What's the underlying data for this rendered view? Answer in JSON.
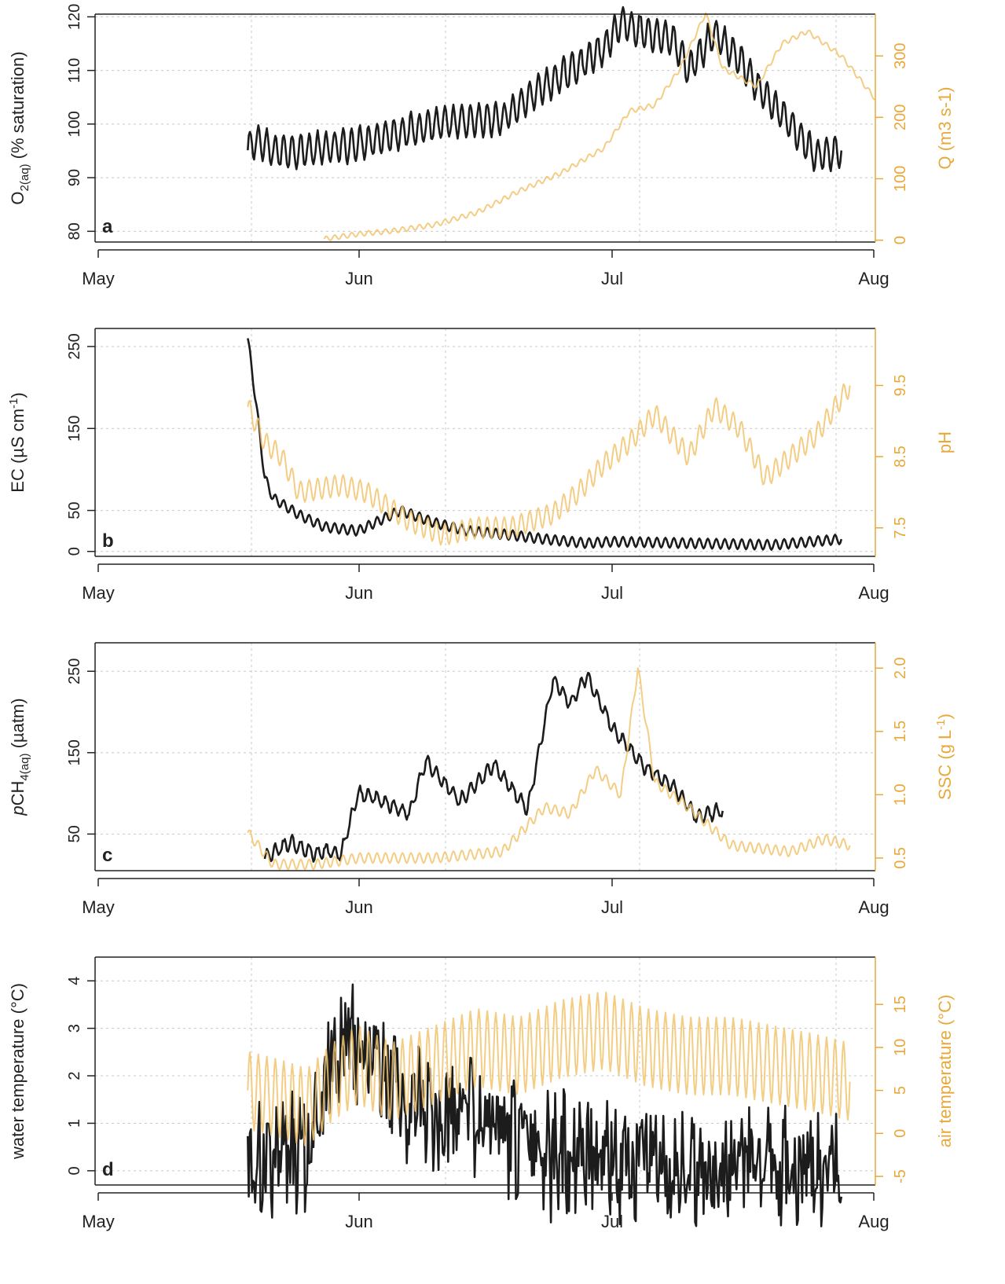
{
  "colors": {
    "primary": "#1c1c1c",
    "secondary": "#f2c46e",
    "secondary_axis": "#e8a93a",
    "grid": "#c8c8c8",
    "axis": "#222222"
  },
  "chart_data": [
    {
      "type": "line",
      "panel_label": "a",
      "x_ticks": [
        "May",
        "Jun",
        "Jul",
        "Aug"
      ],
      "xlim": [
        "2000-05-01",
        "2000-08-01"
      ],
      "ylabel_left_main": "O",
      "ylabel_left_sub": "2(aq)",
      "ylabel_left_rest": " (% saturation)",
      "ylabel_right": "Q (m3 s-1)",
      "ylim_left": [
        78,
        120.5
      ],
      "ylim_right": [
        -3,
        368
      ],
      "left_ticks": [
        "80",
        "90",
        "100",
        "110",
        "120"
      ],
      "right_ticks": [
        "0",
        "100",
        "200",
        "300"
      ],
      "series": [
        {
          "axis": "left",
          "color": "primary",
          "x": [
            "2000-05-19",
            "2000-05-20",
            "2000-05-21",
            "2000-05-22",
            "2000-05-25",
            "2000-05-31",
            "2000-06-05",
            "2000-06-10",
            "2000-06-18",
            "2000-06-22",
            "2000-06-26",
            "2000-06-30",
            "2000-07-02",
            "2000-07-05",
            "2000-07-08",
            "2000-07-10",
            "2000-07-13",
            "2000-07-16",
            "2000-07-18",
            "2000-07-22",
            "2000-07-25",
            "2000-07-28"
          ],
          "y": [
            95,
            97,
            96,
            95,
            95,
            96,
            98,
            100,
            101,
            106,
            110,
            114,
            119,
            117,
            116,
            110,
            117,
            112,
            107,
            100,
            94,
            95
          ]
        },
        {
          "axis": "right",
          "color": "secondary",
          "x": [
            "2000-05-28",
            "2000-06-01",
            "2000-06-05",
            "2000-06-10",
            "2000-06-15",
            "2000-06-20",
            "2000-06-25",
            "2000-06-30",
            "2000-07-03",
            "2000-07-06",
            "2000-07-09",
            "2000-07-12",
            "2000-07-14",
            "2000-07-18",
            "2000-07-21",
            "2000-07-24",
            "2000-07-28",
            "2000-08-01"
          ],
          "y": [
            2,
            10,
            15,
            25,
            45,
            80,
            110,
            150,
            210,
            220,
            280,
            370,
            280,
            250,
            320,
            340,
            300,
            230
          ]
        }
      ]
    },
    {
      "type": "line",
      "panel_label": "b",
      "x_ticks": [
        "May",
        "Jun",
        "Jul",
        "Aug"
      ],
      "xlim": [
        "2000-05-01",
        "2000-08-01"
      ],
      "ylabel_left_main": "EC  (µS cm",
      "ylabel_left_sup": "-1",
      "ylabel_left_rest": ")",
      "ylabel_right": "pH",
      "ylim_left": [
        -6,
        272
      ],
      "ylim_right": [
        7.1,
        10.3
      ],
      "left_ticks": [
        "0",
        "50",
        "150",
        "250"
      ],
      "right_ticks": [
        "7.5",
        "8.5",
        "9.5"
      ],
      "right_tick_values": [
        7.5,
        8.5,
        9.5
      ],
      "series": [
        {
          "axis": "left",
          "color": "primary",
          "x": [
            "2000-05-19",
            "2000-05-20",
            "2000-05-21",
            "2000-05-22",
            "2000-05-25",
            "2000-05-28",
            "2000-06-01",
            "2000-06-06",
            "2000-06-10",
            "2000-06-14",
            "2000-06-19",
            "2000-06-23",
            "2000-06-28",
            "2000-07-01",
            "2000-07-10",
            "2000-07-20",
            "2000-07-28"
          ],
          "y": [
            260,
            180,
            90,
            65,
            45,
            30,
            25,
            50,
            35,
            25,
            20,
            15,
            10,
            12,
            10,
            8,
            15
          ]
        },
        {
          "axis": "right",
          "color": "secondary",
          "x": [
            "2000-05-19",
            "2000-05-21",
            "2000-05-23",
            "2000-05-25",
            "2000-05-30",
            "2000-06-02",
            "2000-06-07",
            "2000-06-11",
            "2000-06-15",
            "2000-06-19",
            "2000-06-24",
            "2000-06-27",
            "2000-06-30",
            "2000-07-03",
            "2000-07-06",
            "2000-07-10",
            "2000-07-13",
            "2000-07-16",
            "2000-07-19",
            "2000-07-25",
            "2000-07-29"
          ],
          "y": [
            9.2,
            8.7,
            8.5,
            8.0,
            8.1,
            8.0,
            7.6,
            7.4,
            7.5,
            7.5,
            7.7,
            8.0,
            8.4,
            8.7,
            9.1,
            8.5,
            9.2,
            8.9,
            8.2,
            8.8,
            9.5
          ]
        }
      ]
    },
    {
      "type": "line",
      "panel_label": "c",
      "x_ticks": [
        "May",
        "Jun",
        "Jul",
        "Aug"
      ],
      "xlim": [
        "2000-05-01",
        "2000-08-01"
      ],
      "ylabel_left_prefix": "p",
      "ylabel_left_main": "CH",
      "ylabel_left_sub": "4(aq)",
      "ylabel_left_rest": "  (µatm)",
      "ylabel_right_main": "SSC (g L",
      "ylabel_right_sup": "-1",
      "ylabel_right_rest": ")",
      "ylim_left": [
        5,
        285
      ],
      "ylim_right": [
        0.4,
        2.2
      ],
      "left_ticks": [
        "50",
        "150",
        "250"
      ],
      "right_ticks": [
        "0.5",
        "1.0",
        "1.5",
        "2.0"
      ],
      "right_tick_values": [
        0.5,
        1.0,
        1.5,
        2.0
      ],
      "series": [
        {
          "axis": "left",
          "color": "primary",
          "x": [
            "2000-05-21",
            "2000-05-24",
            "2000-05-27",
            "2000-05-28",
            "2000-05-30",
            "2000-06-01",
            "2000-06-03",
            "2000-06-07",
            "2000-06-09",
            "2000-06-13",
            "2000-06-17",
            "2000-06-21",
            "2000-06-24",
            "2000-06-26",
            "2000-06-28",
            "2000-07-01",
            "2000-07-05",
            "2000-07-08",
            "2000-07-11",
            "2000-07-14"
          ],
          "y": [
            20,
            40,
            25,
            30,
            25,
            100,
            95,
            75,
            140,
            90,
            135,
            80,
            240,
            210,
            245,
            180,
            130,
            110,
            70,
            80
          ]
        },
        {
          "axis": "right",
          "color": "secondary",
          "x": [
            "2000-05-19",
            "2000-05-22",
            "2000-05-27",
            "2000-06-01",
            "2000-06-10",
            "2000-06-18",
            "2000-06-23",
            "2000-06-26",
            "2000-06-29",
            "2000-07-02",
            "2000-07-04",
            "2000-07-06",
            "2000-07-10",
            "2000-07-15",
            "2000-07-22",
            "2000-07-26",
            "2000-07-29"
          ],
          "y": [
            0.7,
            0.45,
            0.45,
            0.5,
            0.5,
            0.55,
            0.9,
            0.85,
            1.2,
            1.0,
            2.0,
            1.1,
            0.9,
            0.6,
            0.55,
            0.65,
            0.6
          ]
        }
      ]
    },
    {
      "type": "line",
      "panel_label": "d",
      "x_ticks": [
        "May",
        "Jun",
        "Jul",
        "Aug"
      ],
      "xlim": [
        "2000-05-01",
        "2000-08-01"
      ],
      "ylabel_left": "water temperature (°C)",
      "ylabel_right": "air temperature (°C)",
      "ylim_left": [
        -0.3,
        4.5
      ],
      "ylim_right": [
        -6,
        20.5
      ],
      "left_ticks": [
        "0",
        "1",
        "2",
        "3",
        "4"
      ],
      "right_ticks": [
        "-5",
        "0",
        "5",
        "10",
        "15"
      ],
      "series": [
        {
          "axis": "left",
          "color": "primary",
          "x": [
            "2000-05-19",
            "2000-05-23",
            "2000-05-26",
            "2000-05-29",
            "2000-05-31",
            "2000-06-03",
            "2000-06-07",
            "2000-06-10",
            "2000-06-14",
            "2000-06-18",
            "2000-06-21",
            "2000-06-24",
            "2000-07-01",
            "2000-07-10",
            "2000-07-20",
            "2000-07-28"
          ],
          "y": [
            0.1,
            0.2,
            0.6,
            2.5,
            2.8,
            2.2,
            1.5,
            1.0,
            1.2,
            0.8,
            0.5,
            0.3,
            0.2,
            0.15,
            0.2,
            0.15
          ]
        },
        {
          "axis": "right",
          "color": "secondary",
          "x": [
            "2000-05-19",
            "2000-05-23",
            "2000-05-26",
            "2000-05-29",
            "2000-06-01",
            "2000-06-05",
            "2000-06-10",
            "2000-06-15",
            "2000-06-20",
            "2000-06-25",
            "2000-06-30",
            "2000-07-05",
            "2000-07-10",
            "2000-07-15",
            "2000-07-20",
            "2000-07-25",
            "2000-07-29"
          ],
          "y": [
            5,
            4,
            3,
            6,
            8,
            6,
            8,
            10,
            9,
            11,
            12,
            10,
            9,
            9,
            8,
            7,
            6
          ]
        }
      ]
    }
  ]
}
